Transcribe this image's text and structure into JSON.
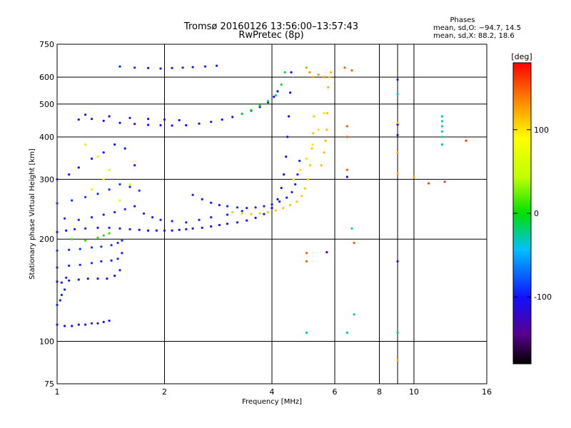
{
  "title_line1": "Tromsø 20160126 13:56:00–13:57:43",
  "title_line2": "RwPretec (8p)",
  "stats": {
    "heading": "Phases",
    "line_o": "mean, sd,O: −94.7, 14.5",
    "line_x": "mean, sd,X:  88.2, 18.6"
  },
  "chart_data": {
    "type": "scatter",
    "title": "Tromsø 20160126 13:56:00–13:57:43",
    "subtitle": "RwPretec (8p)",
    "xlabel": "Frequency [MHz]",
    "ylabel": "Stationary phase Virtual Height [km]",
    "x_scale": "log",
    "y_scale": "log",
    "xlim": [
      1,
      16
    ],
    "ylim": [
      75,
      750
    ],
    "x_ticks": [
      1,
      2,
      4,
      6,
      8,
      10,
      16
    ],
    "y_ticks": [
      75,
      100,
      200,
      300,
      400,
      500,
      600,
      750
    ],
    "grid": true,
    "colorbar": {
      "label": "[deg]",
      "range": [
        -180,
        180
      ],
      "ticks": [
        -100,
        0,
        100
      ]
    },
    "series": [
      {
        "points": [
          [
            1.0,
            112
          ],
          [
            1.05,
            111
          ],
          [
            1.1,
            111
          ],
          [
            1.15,
            112
          ],
          [
            1.2,
            112
          ],
          [
            1.25,
            113
          ],
          [
            1.3,
            113
          ],
          [
            1.35,
            114
          ],
          [
            1.4,
            115
          ]
        ],
        "phase": -100
      },
      {
        "points": [
          [
            1.0,
            128
          ],
          [
            1.02,
            132
          ],
          [
            1.03,
            137
          ],
          [
            1.05,
            142
          ],
          [
            1.03,
            149
          ],
          [
            1.06,
            154
          ]
        ],
        "phase": -95
      },
      {
        "points": [
          [
            1.0,
            150
          ],
          [
            1.08,
            151
          ],
          [
            1.15,
            152
          ],
          [
            1.22,
            153
          ],
          [
            1.3,
            153
          ],
          [
            1.38,
            153
          ],
          [
            1.45,
            156
          ],
          [
            1.5,
            162
          ]
        ],
        "phase": -100
      },
      {
        "points": [
          [
            1.0,
            165
          ],
          [
            1.08,
            167
          ],
          [
            1.16,
            168
          ],
          [
            1.25,
            170
          ],
          [
            1.33,
            172
          ],
          [
            1.42,
            173
          ],
          [
            1.48,
            175
          ],
          [
            1.52,
            182
          ]
        ],
        "phase": -95
      },
      {
        "points": [
          [
            1.0,
            185
          ],
          [
            1.08,
            186
          ],
          [
            1.16,
            187
          ],
          [
            1.25,
            189
          ],
          [
            1.33,
            190
          ],
          [
            1.42,
            192
          ],
          [
            1.48,
            195
          ],
          [
            1.52,
            198
          ]
        ],
        "phase": -90
      },
      {
        "points": [
          [
            1.1,
            200
          ],
          [
            1.2,
            198
          ],
          [
            1.3,
            202
          ],
          [
            1.35,
            205
          ],
          [
            1.4,
            208
          ]
        ],
        "phase": 10
      },
      {
        "points": [
          [
            1.0,
            210
          ],
          [
            1.06,
            212
          ],
          [
            1.12,
            214
          ],
          [
            1.2,
            215
          ],
          [
            1.3,
            216
          ],
          [
            1.4,
            216
          ],
          [
            1.5,
            215
          ],
          [
            1.6,
            214
          ],
          [
            1.7,
            213
          ],
          [
            1.8,
            212
          ],
          [
            1.9,
            212
          ],
          [
            2.0,
            212
          ],
          [
            2.1,
            212
          ],
          [
            2.2,
            213
          ],
          [
            2.3,
            214
          ],
          [
            2.4,
            215
          ],
          [
            2.55,
            216
          ],
          [
            2.7,
            218
          ],
          [
            2.85,
            220
          ],
          [
            3.0,
            222
          ],
          [
            3.2,
            224
          ],
          [
            3.4,
            227
          ],
          [
            3.6,
            231
          ],
          [
            3.8,
            237
          ],
          [
            4.0,
            247
          ],
          [
            4.15,
            262
          ],
          [
            4.25,
            283
          ],
          [
            4.32,
            310
          ],
          [
            4.38,
            350
          ],
          [
            4.42,
            400
          ],
          [
            4.46,
            460
          ],
          [
            4.5,
            540
          ],
          [
            4.53,
            620
          ]
        ],
        "phase": -100
      },
      {
        "points": [
          [
            1.05,
            230
          ],
          [
            1.15,
            228
          ],
          [
            1.25,
            232
          ],
          [
            1.35,
            236
          ],
          [
            1.45,
            240
          ],
          [
            1.55,
            245
          ],
          [
            1.65,
            250
          ],
          [
            1.75,
            238
          ],
          [
            1.85,
            232
          ],
          [
            1.95,
            228
          ],
          [
            2.1,
            226
          ],
          [
            2.3,
            224
          ],
          [
            2.5,
            228
          ],
          [
            2.7,
            232
          ],
          [
            3.0,
            236
          ],
          [
            3.3,
            242
          ]
        ],
        "phase": -95
      },
      {
        "points": [
          [
            1.0,
            255
          ],
          [
            1.1,
            260
          ],
          [
            1.2,
            266
          ],
          [
            1.3,
            272
          ],
          [
            1.4,
            280
          ],
          [
            1.5,
            290
          ],
          [
            1.6,
            285
          ],
          [
            1.7,
            278
          ]
        ],
        "phase": -90
      },
      {
        "points": [
          [
            1.0,
            300
          ],
          [
            1.08,
            310
          ],
          [
            1.15,
            325
          ],
          [
            1.25,
            345
          ],
          [
            1.35,
            360
          ],
          [
            1.45,
            380
          ],
          [
            1.55,
            370
          ],
          [
            1.65,
            330
          ]
        ],
        "phase": -100
      },
      {
        "points": [
          [
            1.25,
            280
          ],
          [
            1.35,
            300
          ],
          [
            1.4,
            320
          ],
          [
            1.3,
            350
          ],
          [
            1.2,
            380
          ],
          [
            1.5,
            260
          ],
          [
            1.6,
            290
          ]
        ],
        "phase": 60
      },
      {
        "points": [
          [
            1.15,
            450
          ],
          [
            1.25,
            452
          ],
          [
            1.35,
            446
          ],
          [
            1.5,
            440
          ],
          [
            1.65,
            437
          ],
          [
            1.8,
            434
          ],
          [
            1.95,
            433
          ],
          [
            2.1,
            432
          ],
          [
            2.3,
            433
          ],
          [
            2.5,
            438
          ],
          [
            2.7,
            443
          ],
          [
            2.9,
            450
          ],
          [
            3.1,
            458
          ],
          [
            3.3,
            468
          ],
          [
            3.5,
            478
          ],
          [
            3.7,
            490
          ],
          [
            3.9,
            506
          ],
          [
            4.05,
            525
          ],
          [
            4.15,
            545
          ]
        ],
        "phase": -100
      },
      {
        "points": [
          [
            1.2,
            465
          ],
          [
            1.4,
            460
          ],
          [
            1.6,
            455
          ],
          [
            1.8,
            452
          ],
          [
            2.0,
            450
          ],
          [
            2.2,
            448
          ]
        ],
        "phase": -105
      },
      {
        "points": [
          [
            3.3,
            468
          ],
          [
            3.5,
            480
          ],
          [
            3.7,
            495
          ],
          [
            3.9,
            510
          ],
          [
            4.1,
            530
          ],
          [
            4.25,
            570
          ],
          [
            4.35,
            620
          ]
        ],
        "phase": -10
      },
      {
        "points": [
          [
            1.5,
            645
          ],
          [
            1.65,
            640
          ],
          [
            1.8,
            638
          ],
          [
            1.95,
            636
          ],
          [
            2.1,
            638
          ],
          [
            2.25,
            640
          ],
          [
            2.4,
            642
          ],
          [
            2.6,
            645
          ],
          [
            2.8,
            648
          ]
        ],
        "phase": -95
      },
      {
        "points": [
          [
            2.4,
            270
          ],
          [
            2.55,
            262
          ],
          [
            2.7,
            256
          ],
          [
            2.85,
            252
          ],
          [
            3.0,
            250
          ],
          [
            3.2,
            248
          ],
          [
            3.4,
            247
          ],
          [
            3.6,
            248
          ],
          [
            3.8,
            250
          ],
          [
            4.0,
            253
          ],
          [
            4.2,
            258
          ],
          [
            4.4,
            265
          ],
          [
            4.55,
            275
          ],
          [
            4.65,
            290
          ],
          [
            4.72,
            310
          ],
          [
            4.78,
            340
          ]
        ],
        "phase": -95
      },
      {
        "points": [
          [
            3.1,
            240
          ],
          [
            3.3,
            238
          ],
          [
            3.5,
            237
          ],
          [
            3.7,
            238
          ],
          [
            3.9,
            240
          ],
          [
            4.1,
            243
          ],
          [
            4.3,
            247
          ],
          [
            4.5,
            252
          ],
          [
            4.7,
            258
          ],
          [
            4.85,
            268
          ],
          [
            4.95,
            282
          ],
          [
            5.05,
            300
          ],
          [
            5.12,
            330
          ],
          [
            5.18,
            370
          ],
          [
            5.22,
            410
          ],
          [
            5.25,
            460
          ]
        ],
        "phase": 110
      },
      {
        "points": [
          [
            4.6,
            300
          ],
          [
            4.8,
            320
          ],
          [
            5.0,
            345
          ],
          [
            5.2,
            380
          ],
          [
            5.4,
            420
          ],
          [
            5.6,
            470
          ]
        ],
        "phase": 100
      },
      {
        "points": [
          [
            5.5,
            330
          ],
          [
            5.6,
            360
          ],
          [
            5.65,
            390
          ],
          [
            5.7,
            420
          ],
          [
            5.72,
            470
          ],
          [
            5.75,
            560
          ],
          [
            5.8,
            600
          ],
          [
            5.85,
            620
          ]
        ],
        "phase": 115
      },
      {
        "points": [
          [
            5.0,
            640
          ],
          [
            5.1,
            620
          ],
          [
            5.2,
            600
          ],
          [
            5.4,
            610
          ],
          [
            5.6,
            600
          ]
        ],
        "phase": 130
      },
      {
        "points": [
          [
            5.0,
            106
          ],
          [
            6.5,
            106
          ],
          [
            9.0,
            106
          ],
          [
            6.7,
            215
          ],
          [
            6.8,
            120
          ]
        ],
        "phase": -20
      },
      {
        "points": [
          [
            5.0,
            182
          ],
          [
            5.0,
            172
          ],
          [
            6.5,
            320
          ],
          [
            6.5,
            400
          ],
          [
            6.5,
            430
          ],
          [
            6.4,
            640
          ],
          [
            6.7,
            628
          ],
          [
            6.8,
            195
          ]
        ],
        "phase": 150
      },
      {
        "points": [
          [
            5.7,
            183
          ],
          [
            9.0,
            172
          ],
          [
            9.0,
            435
          ],
          [
            9.0,
            405
          ],
          [
            9.0,
            590
          ],
          [
            6.5,
            305
          ]
        ],
        "phase": -130
      },
      {
        "points": [
          [
            9.0,
            88
          ],
          [
            9.0,
            360
          ],
          [
            9.0,
            312
          ],
          [
            9.0,
            440
          ],
          [
            10.0,
            305
          ]
        ],
        "phase": 120
      },
      {
        "points": [
          [
            12.0,
            460
          ],
          [
            12.0,
            445
          ],
          [
            12.0,
            430
          ],
          [
            12.0,
            415
          ],
          [
            12.0,
            400
          ],
          [
            12.0,
            380
          ],
          [
            9.0,
            535
          ]
        ],
        "phase": -30
      },
      {
        "points": [
          [
            14.0,
            390
          ],
          [
            11.0,
            292
          ],
          [
            12.2,
            295
          ]
        ],
        "phase": 160
      }
    ]
  }
}
